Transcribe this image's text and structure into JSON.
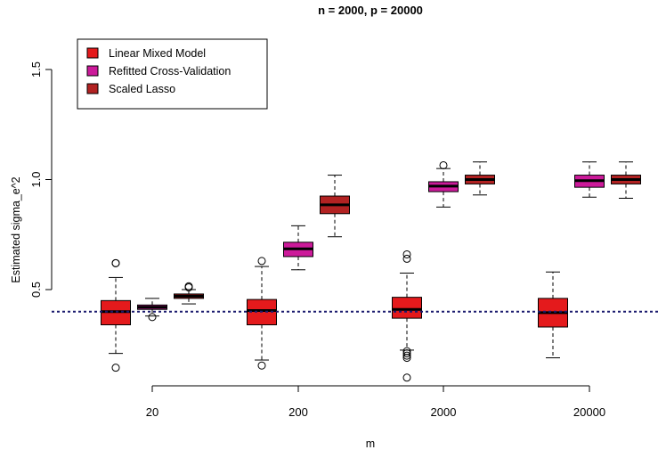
{
  "chart_data": {
    "type": "boxplot",
    "title": "n = 2000, p = 20000",
    "xlabel": "m",
    "ylabel": "Estimated sigma_e^2",
    "categories": [
      "20",
      "200",
      "2000",
      "20000"
    ],
    "ylim": [
      0.08,
      1.75
    ],
    "yticks": [
      0.5,
      1.0,
      1.5
    ],
    "ytick_labels": [
      "0.5",
      "1.0",
      "1.5"
    ],
    "reference_line": 0.4,
    "legend_position": "top-left",
    "series": [
      {
        "name": "Linear Mixed Model",
        "color": "#e41a1c",
        "boxes": [
          {
            "min": 0.21,
            "q1": 0.34,
            "median": 0.4,
            "q3": 0.45,
            "max": 0.555,
            "outliers": [
              0.62,
              0.62,
              0.145
            ]
          },
          {
            "min": 0.18,
            "q1": 0.34,
            "median": 0.405,
            "q3": 0.455,
            "max": 0.605,
            "outliers": [
              0.63,
              0.155
            ]
          },
          {
            "min": 0.225,
            "q1": 0.37,
            "median": 0.41,
            "q3": 0.465,
            "max": 0.575,
            "outliers": [
              0.66,
              0.64,
              0.22,
              0.21,
              0.2,
              0.19,
              0.1
            ]
          },
          {
            "min": 0.19,
            "q1": 0.33,
            "median": 0.395,
            "q3": 0.46,
            "max": 0.58,
            "outliers": []
          }
        ]
      },
      {
        "name": "Refitted Cross-Validation",
        "color": "#cc1a9a",
        "boxes": [
          {
            "min": 0.38,
            "q1": 0.41,
            "median": 0.42,
            "q3": 0.43,
            "max": 0.46,
            "outliers": [
              0.375
            ]
          },
          {
            "min": 0.59,
            "q1": 0.65,
            "median": 0.685,
            "q3": 0.715,
            "max": 0.79,
            "outliers": []
          },
          {
            "min": 0.875,
            "q1": 0.945,
            "median": 0.97,
            "q3": 0.99,
            "max": 1.05,
            "outliers": [
              1.065
            ]
          },
          {
            "min": 0.92,
            "q1": 0.965,
            "median": 0.995,
            "q3": 1.02,
            "max": 1.08,
            "outliers": []
          }
        ]
      },
      {
        "name": "Scaled Lasso",
        "color": "#b22222",
        "boxes": [
          {
            "min": 0.435,
            "q1": 0.46,
            "median": 0.47,
            "q3": 0.48,
            "max": 0.5,
            "outliers": [
              0.515,
              0.51
            ]
          },
          {
            "min": 0.74,
            "q1": 0.845,
            "median": 0.885,
            "q3": 0.925,
            "max": 1.02,
            "outliers": []
          },
          {
            "min": 0.93,
            "q1": 0.98,
            "median": 1.0,
            "q3": 1.02,
            "max": 1.08,
            "outliers": []
          },
          {
            "min": 0.915,
            "q1": 0.98,
            "median": 1.0,
            "q3": 1.02,
            "max": 1.08,
            "outliers": []
          }
        ]
      }
    ]
  }
}
